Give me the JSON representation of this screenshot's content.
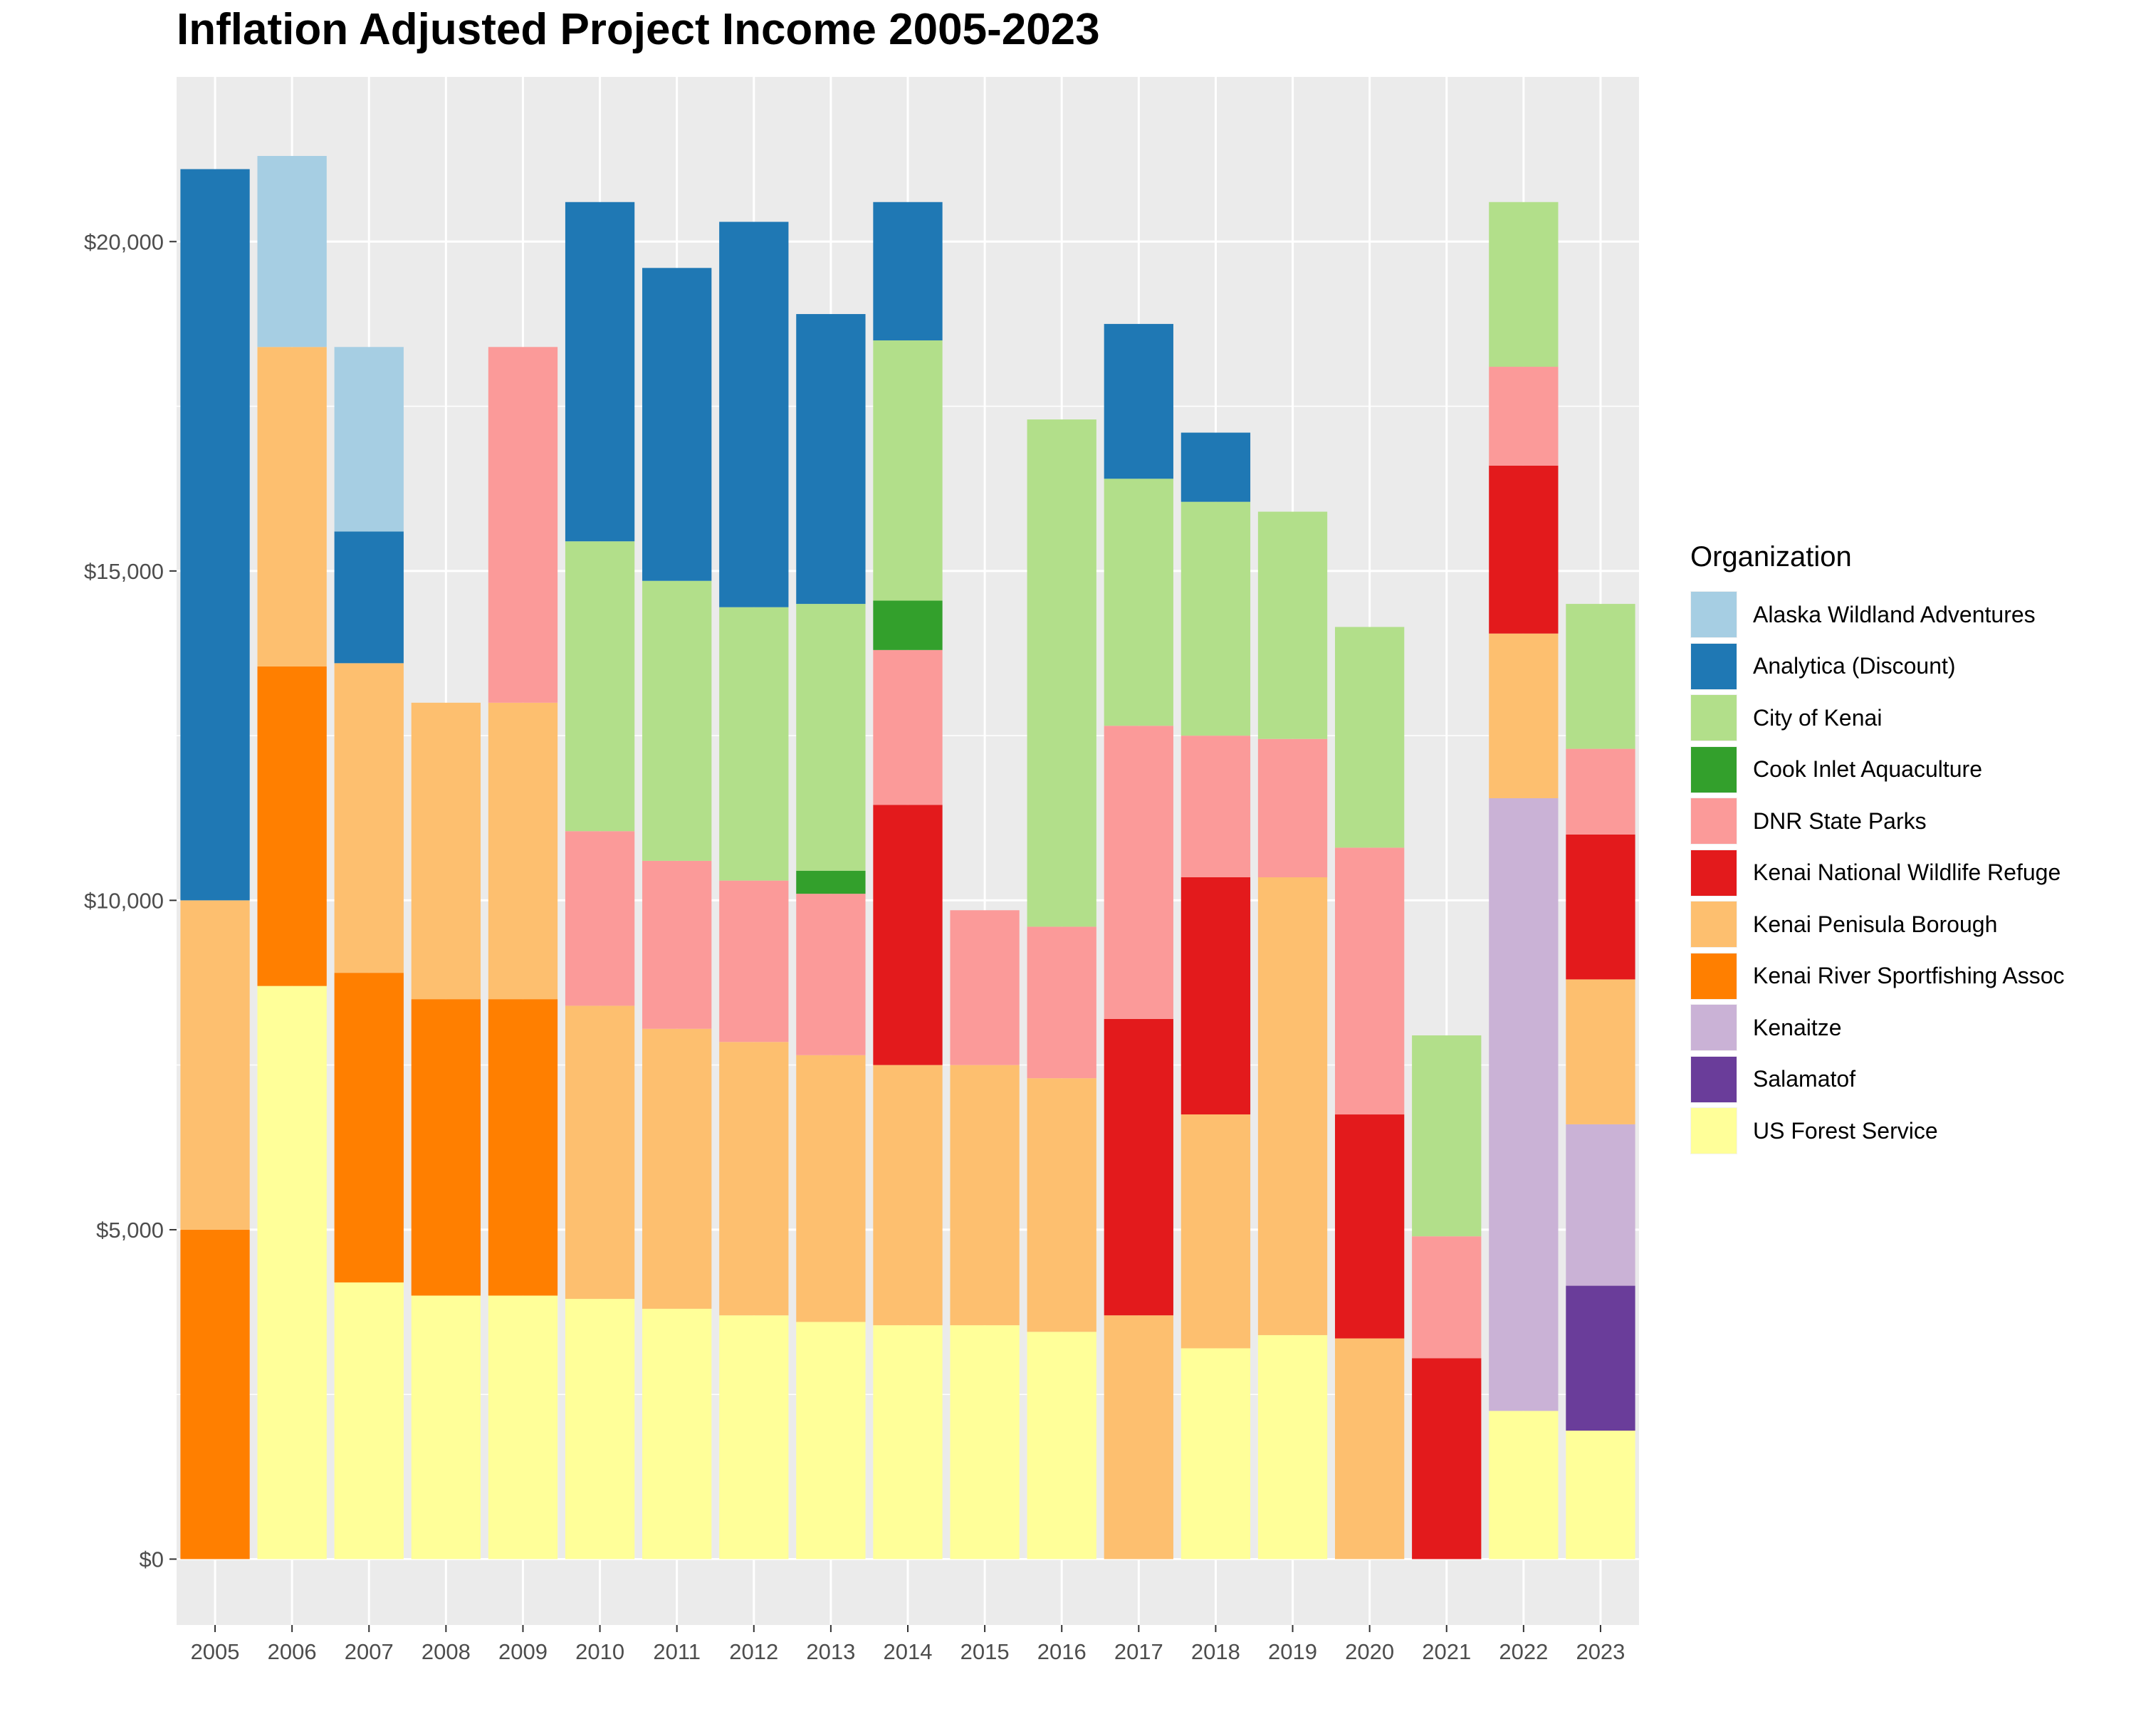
{
  "chart_data": {
    "type": "bar",
    "stacked": true,
    "title": "Inflation Adjusted Project Income 2005-2023",
    "xlabel": "",
    "ylabel": "",
    "ylim": [
      -1000,
      22500
    ],
    "y_ticks": [
      0,
      5000,
      10000,
      15000,
      20000
    ],
    "y_tick_labels": [
      "$0",
      "$5,000",
      "$10,000",
      "$15,000",
      "$20,000"
    ],
    "grid": true,
    "legend_position": "right",
    "legend_title": "Organization",
    "categories": [
      "2005",
      "2006",
      "2007",
      "2008",
      "2009",
      "2010",
      "2011",
      "2012",
      "2013",
      "2014",
      "2015",
      "2016",
      "2017",
      "2018",
      "2019",
      "2020",
      "2021",
      "2022",
      "2023"
    ],
    "series": [
      {
        "name": "Alaska Wildland Adventures",
        "color": "#A6CEE3",
        "values": [
          0,
          2900,
          2800,
          0,
          0,
          0,
          0,
          0,
          0,
          0,
          0,
          0,
          0,
          0,
          0,
          0,
          0,
          0,
          0
        ]
      },
      {
        "name": "Analytica (Discount)",
        "color": "#1F78B4",
        "values": [
          11100,
          0,
          2000,
          0,
          0,
          5150,
          4750,
          5850,
          4400,
          2100,
          0,
          0,
          2350,
          1050,
          0,
          0,
          0,
          0,
          0
        ]
      },
      {
        "name": "City of Kenai",
        "color": "#B2DF8A",
        "values": [
          0,
          0,
          0,
          0,
          0,
          4400,
          4250,
          4150,
          4050,
          3950,
          0,
          7700,
          3750,
          3550,
          3450,
          3350,
          3050,
          2500,
          2200
        ]
      },
      {
        "name": "Cook Inlet Aquaculture",
        "color": "#33A02C",
        "values": [
          0,
          0,
          0,
          0,
          0,
          0,
          0,
          0,
          350,
          750,
          0,
          0,
          0,
          0,
          0,
          0,
          0,
          0,
          0
        ]
      },
      {
        "name": "DNR State Parks",
        "color": "#FB9A99",
        "values": [
          0,
          0,
          0,
          0,
          5400,
          2650,
          2550,
          2450,
          2450,
          2350,
          2350,
          2300,
          4450,
          2150,
          2100,
          4050,
          1850,
          1500,
          1300
        ]
      },
      {
        "name": "Kenai National Wildlife Refuge",
        "color": "#E31A1C",
        "values": [
          0,
          0,
          0,
          0,
          0,
          0,
          0,
          0,
          0,
          3950,
          0,
          0,
          4500,
          3600,
          0,
          3400,
          3050,
          2550,
          2200
        ]
      },
      {
        "name": "Kenai Penisula Borough",
        "color": "#FDBF6F",
        "values": [
          5000,
          4850,
          4700,
          4500,
          4500,
          4450,
          4250,
          4150,
          4050,
          3950,
          3950,
          3850,
          3700,
          3550,
          6950,
          3350,
          0,
          2500,
          2200
        ]
      },
      {
        "name": "Kenai River Sportfishing Assoc",
        "color": "#FF7F00",
        "values": [
          5000,
          4850,
          4700,
          4500,
          4500,
          0,
          0,
          0,
          0,
          0,
          0,
          0,
          0,
          0,
          0,
          0,
          0,
          0,
          0
        ]
      },
      {
        "name": "Kenaitze",
        "color": "#CAB2D6",
        "values": [
          0,
          0,
          0,
          0,
          0,
          0,
          0,
          0,
          0,
          0,
          0,
          0,
          0,
          0,
          0,
          0,
          0,
          9300,
          2450
        ]
      },
      {
        "name": "Salamatof",
        "color": "#6A3D9A",
        "values": [
          0,
          0,
          0,
          0,
          0,
          0,
          0,
          0,
          0,
          0,
          0,
          0,
          0,
          0,
          0,
          0,
          0,
          0,
          2200
        ]
      },
      {
        "name": "US Forest Service",
        "color": "#FFFF99",
        "values": [
          0,
          8700,
          4200,
          4000,
          4000,
          3950,
          3800,
          3700,
          3600,
          3550,
          3550,
          3450,
          0,
          3200,
          3400,
          0,
          0,
          2250,
          1950
        ]
      }
    ]
  }
}
